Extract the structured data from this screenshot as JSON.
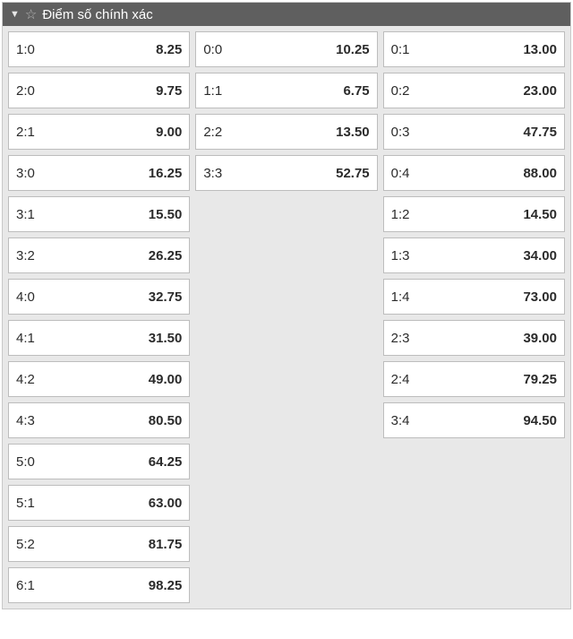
{
  "header": {
    "title": "Điểm số chính xác"
  },
  "columns": [
    [
      {
        "score": "1:0",
        "odd": "8.25"
      },
      {
        "score": "2:0",
        "odd": "9.75"
      },
      {
        "score": "2:1",
        "odd": "9.00"
      },
      {
        "score": "3:0",
        "odd": "16.25"
      },
      {
        "score": "3:1",
        "odd": "15.50"
      },
      {
        "score": "3:2",
        "odd": "26.25"
      },
      {
        "score": "4:0",
        "odd": "32.75"
      },
      {
        "score": "4:1",
        "odd": "31.50"
      },
      {
        "score": "4:2",
        "odd": "49.00"
      },
      {
        "score": "4:3",
        "odd": "80.50"
      },
      {
        "score": "5:0",
        "odd": "64.25"
      },
      {
        "score": "5:1",
        "odd": "63.00"
      },
      {
        "score": "5:2",
        "odd": "81.75"
      },
      {
        "score": "6:1",
        "odd": "98.25"
      }
    ],
    [
      {
        "score": "0:0",
        "odd": "10.25"
      },
      {
        "score": "1:1",
        "odd": "6.75"
      },
      {
        "score": "2:2",
        "odd": "13.50"
      },
      {
        "score": "3:3",
        "odd": "52.75"
      }
    ],
    [
      {
        "score": "0:1",
        "odd": "13.00"
      },
      {
        "score": "0:2",
        "odd": "23.00"
      },
      {
        "score": "0:3",
        "odd": "47.75"
      },
      {
        "score": "0:4",
        "odd": "88.00"
      },
      {
        "score": "1:2",
        "odd": "14.50"
      },
      {
        "score": "1:3",
        "odd": "34.00"
      },
      {
        "score": "1:4",
        "odd": "73.00"
      },
      {
        "score": "2:3",
        "odd": "39.00"
      },
      {
        "score": "2:4",
        "odd": "79.25"
      },
      {
        "score": "3:4",
        "odd": "94.50"
      }
    ]
  ]
}
